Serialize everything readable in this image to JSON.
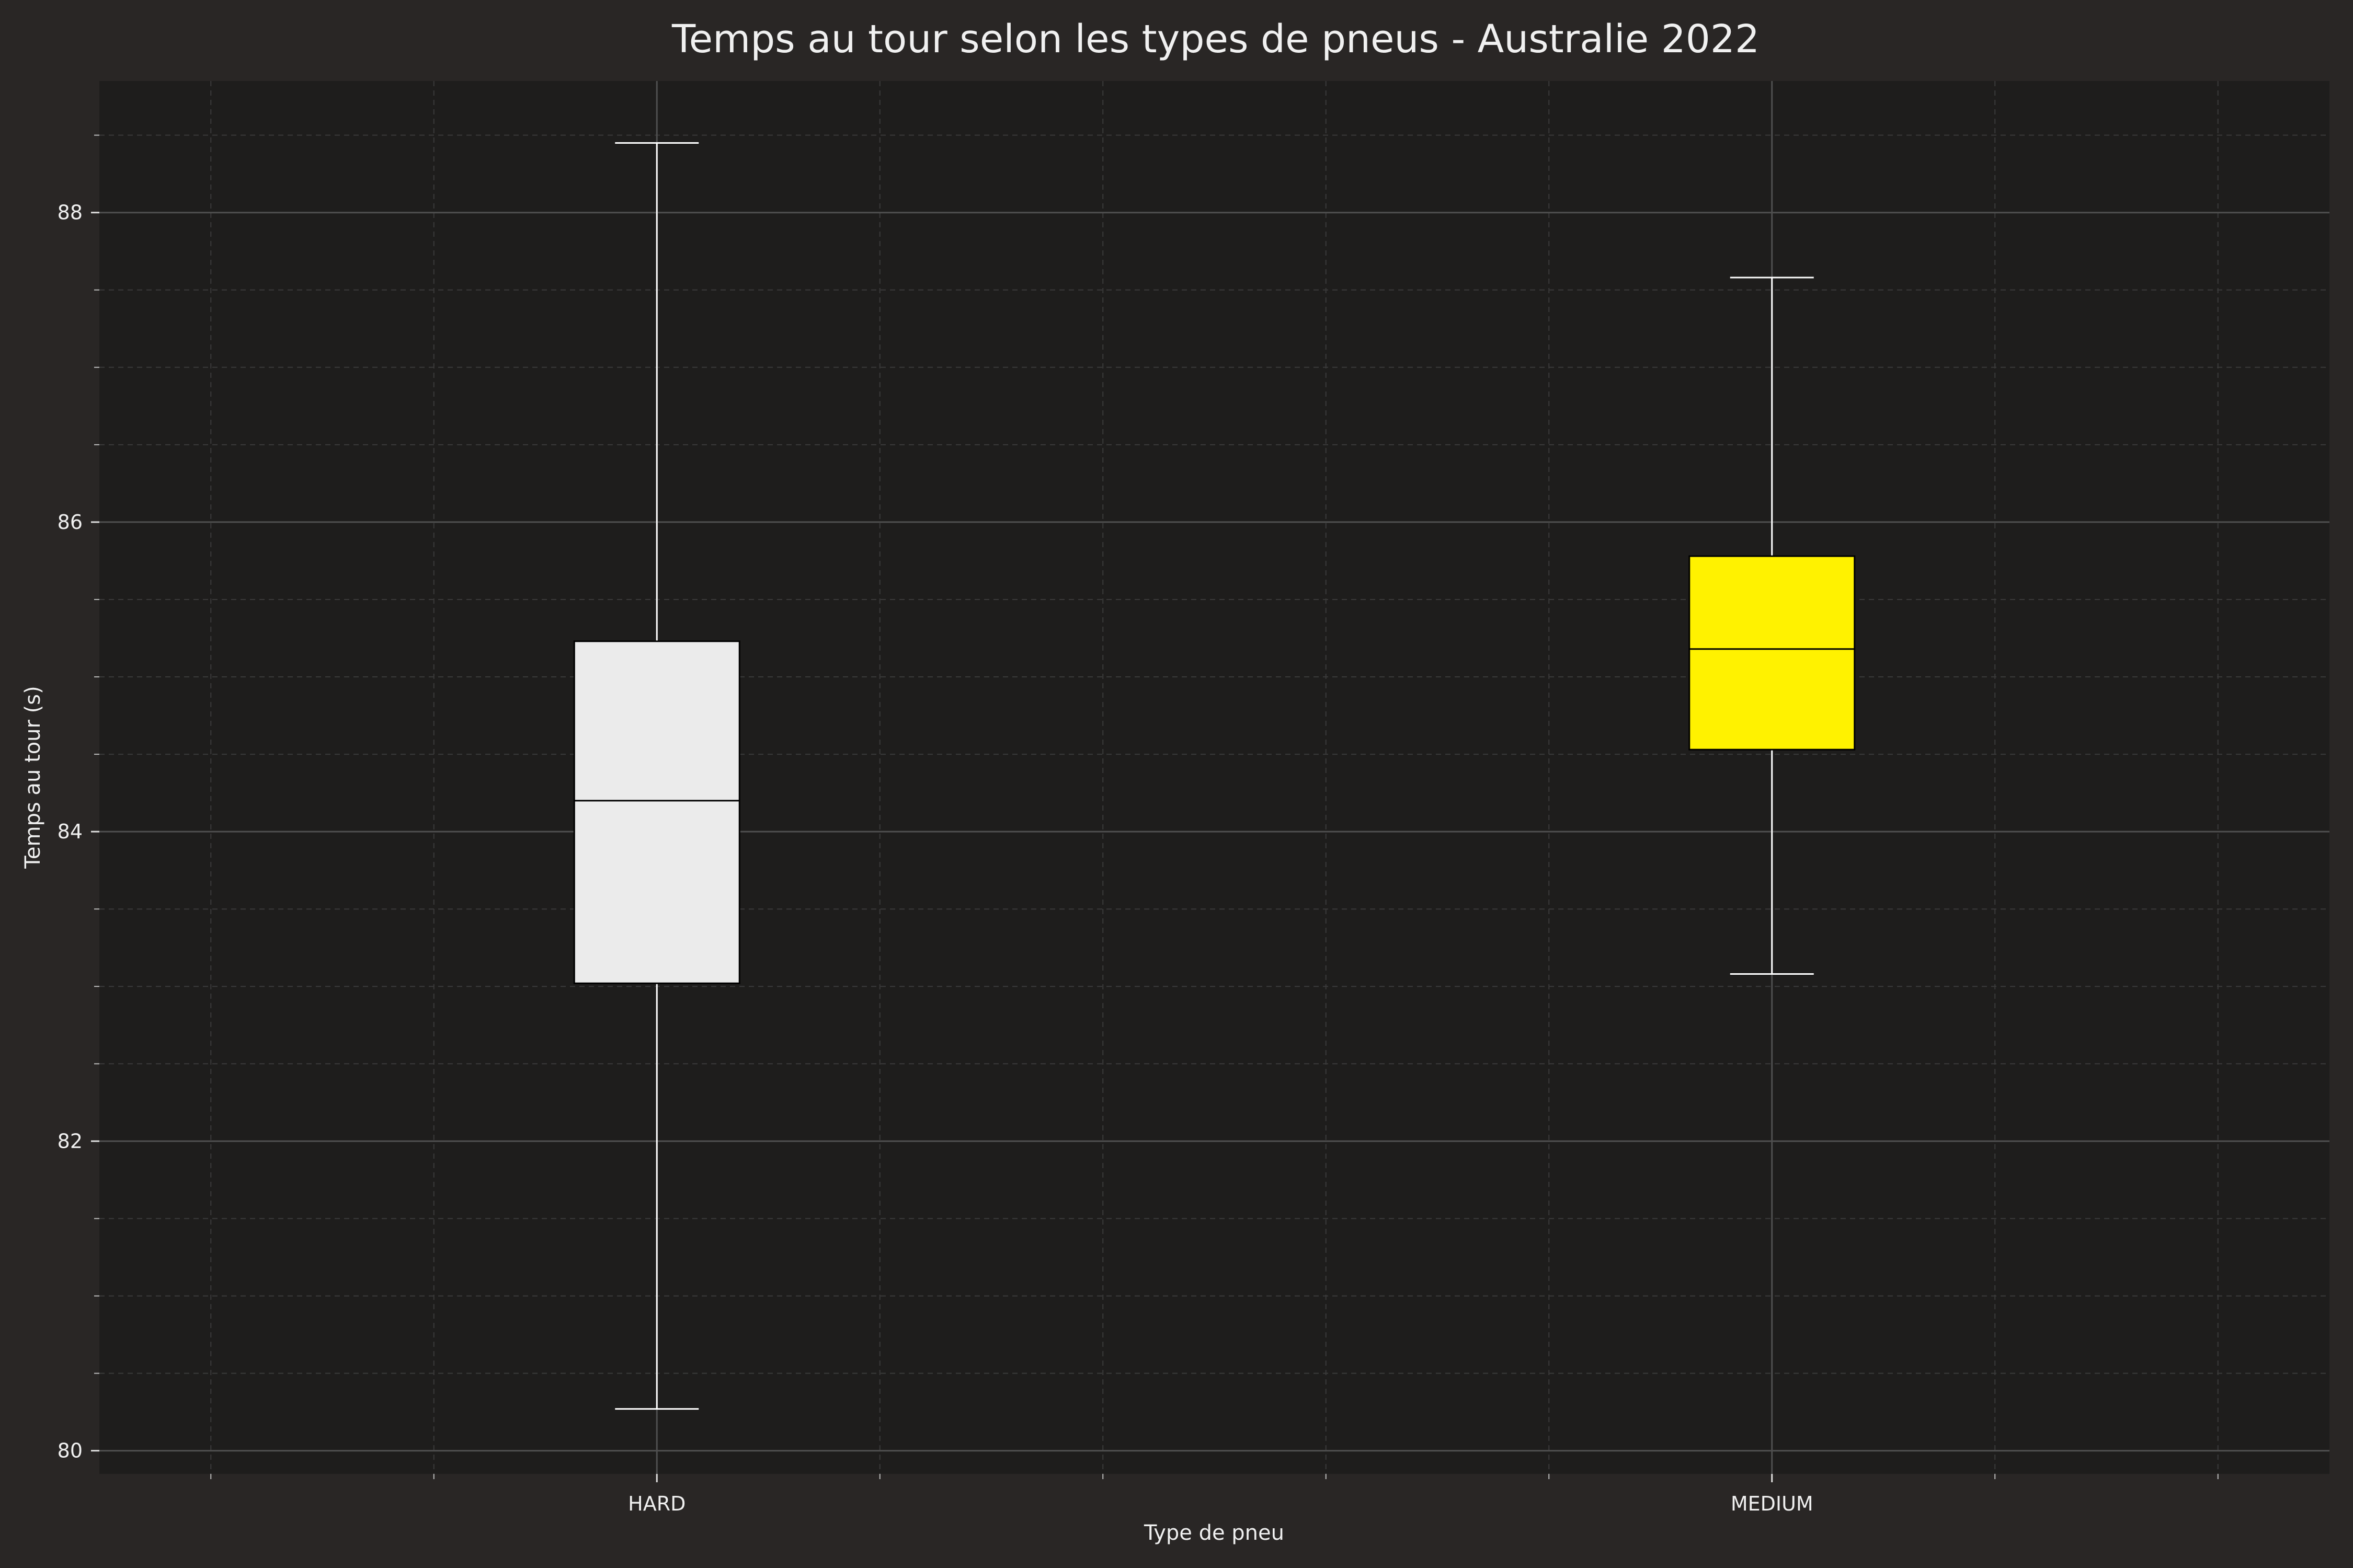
{
  "chart_data": {
    "type": "box",
    "title": "Temps au tour selon les types de pneus - Australie 2022",
    "xlabel": "Type de pneu",
    "ylabel": "Temps au tour (s)",
    "ylim": [
      79.85,
      88.85
    ],
    "yticks": [
      80,
      82,
      84,
      86,
      88
    ],
    "grid": true,
    "categories": [
      "HARD",
      "MEDIUM"
    ],
    "boxes": [
      {
        "category": "HARD",
        "whisker_low": 80.27,
        "q1": 83.02,
        "median": 84.2,
        "q3": 85.23,
        "whisker_high": 88.45,
        "color": "#ebebeb"
      },
      {
        "category": "MEDIUM",
        "whisker_low": 83.08,
        "q1": 84.53,
        "median": 85.18,
        "q3": 85.78,
        "whisker_high": 87.58,
        "color": "#fff200"
      }
    ]
  },
  "colors": {
    "figure_bg": "#292625",
    "plot_bg": "#1e1d1c",
    "major_grid": "#4f4f4f",
    "minor_grid": "#3a3a3a",
    "whisker": "#ffffff",
    "median": "#000000"
  }
}
